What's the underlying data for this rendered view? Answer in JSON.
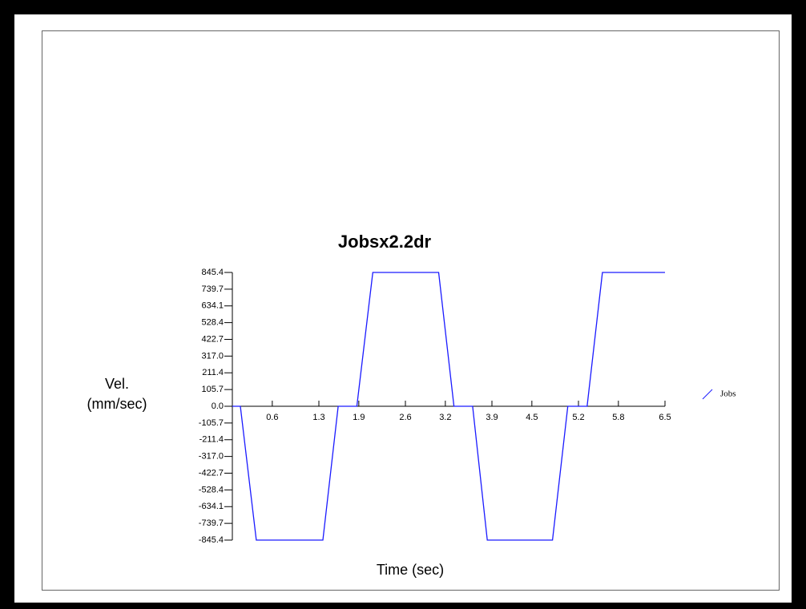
{
  "chart_data": {
    "type": "line",
    "title": "Jobsx2.2dr",
    "ylabel": [
      "Vel.",
      "(mm/sec)"
    ],
    "xlabel": "Time (sec)",
    "x": [
      0,
      0.12,
      0.36,
      1.36,
      1.59,
      1.87,
      2.11,
      3.1,
      3.33,
      3.61,
      3.83,
      4.81,
      5.04,
      5.33,
      5.56,
      6.5
    ],
    "series": [
      {
        "name": "Jobs",
        "color": "#1a1aff",
        "values": [
          0,
          0,
          -845.4,
          -845.4,
          0,
          0,
          845.4,
          845.4,
          0,
          0,
          -845.4,
          -845.4,
          0,
          0,
          845.4,
          845.4
        ]
      }
    ],
    "xlim": [
      0,
      6.5
    ],
    "xticks": [
      0.6,
      1.3,
      1.9,
      2.6,
      3.2,
      3.9,
      4.5,
      5.2,
      5.8,
      6.5
    ],
    "ylim": [
      -845.4,
      845.4
    ],
    "yticks": [
      845.4,
      739.7,
      634.1,
      528.4,
      422.7,
      {
        "value": 317,
        "label": "317.0"
      },
      211.4,
      105.7,
      {
        "value": 0,
        "label": "0.0"
      },
      -105.7,
      -211.4,
      {
        "value": -317,
        "label": "-317.0"
      },
      -422.7,
      -528.4,
      -634.1,
      -739.7,
      -845.4
    ],
    "legend": "right"
  }
}
